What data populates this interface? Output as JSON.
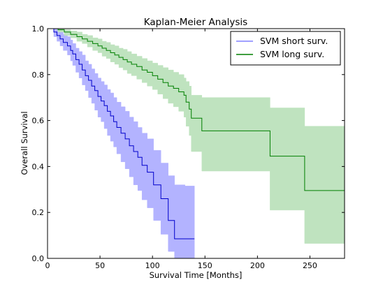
{
  "chart_data": {
    "type": "line",
    "title": "Kaplan-Meier Analysis",
    "xlabel": "Survival Time [Months]",
    "ylabel": "Overall Survival",
    "xlim": [
      0,
      283
    ],
    "ylim": [
      0,
      1.0
    ],
    "xticks": [
      "0",
      "50",
      "100",
      "150",
      "200",
      "250"
    ],
    "xtick_values": [
      0,
      50,
      100,
      150,
      200,
      250
    ],
    "yticks": [
      "0.0",
      "0.2",
      "0.4",
      "0.6",
      "0.8",
      "1.0"
    ],
    "ytick_values": [
      0,
      0.2,
      0.4,
      0.6,
      0.8,
      1.0
    ],
    "grid": false,
    "legend_position": "top-right",
    "series": [
      {
        "name": "SVM short surv.",
        "color": "#0000cc",
        "band_color": "#b3b3ff",
        "survival": [
          [
            0,
            1.0
          ],
          [
            6,
            0.985
          ],
          [
            9,
            0.97
          ],
          [
            12,
            0.955
          ],
          [
            15,
            0.94
          ],
          [
            19,
            0.925
          ],
          [
            22,
            0.905
          ],
          [
            24,
            0.89
          ],
          [
            27,
            0.865
          ],
          [
            30,
            0.845
          ],
          [
            33,
            0.82
          ],
          [
            36,
            0.795
          ],
          [
            39,
            0.775
          ],
          [
            42,
            0.75
          ],
          [
            45,
            0.73
          ],
          [
            48,
            0.705
          ],
          [
            51,
            0.685
          ],
          [
            54,
            0.665
          ],
          [
            57,
            0.64
          ],
          [
            60,
            0.62
          ],
          [
            63,
            0.595
          ],
          [
            66,
            0.57
          ],
          [
            70,
            0.545
          ],
          [
            74,
            0.52
          ],
          [
            78,
            0.49
          ],
          [
            82,
            0.465
          ],
          [
            86,
            0.44
          ],
          [
            90,
            0.405
          ],
          [
            95,
            0.375
          ],
          [
            101,
            0.32
          ],
          [
            108,
            0.26
          ],
          [
            115,
            0.165
          ],
          [
            121,
            0.085
          ],
          [
            131,
            0.085
          ],
          [
            140,
            0.085
          ]
        ],
        "ci_lower": [
          [
            0,
            1.0
          ],
          [
            6,
            0.965
          ],
          [
            9,
            0.945
          ],
          [
            12,
            0.925
          ],
          [
            15,
            0.905
          ],
          [
            19,
            0.885
          ],
          [
            22,
            0.86
          ],
          [
            24,
            0.84
          ],
          [
            27,
            0.81
          ],
          [
            30,
            0.785
          ],
          [
            33,
            0.755
          ],
          [
            36,
            0.73
          ],
          [
            39,
            0.7
          ],
          [
            42,
            0.675
          ],
          [
            45,
            0.645
          ],
          [
            48,
            0.615
          ],
          [
            51,
            0.595
          ],
          [
            54,
            0.565
          ],
          [
            57,
            0.535
          ],
          [
            60,
            0.51
          ],
          [
            63,
            0.485
          ],
          [
            66,
            0.455
          ],
          [
            70,
            0.42
          ],
          [
            74,
            0.39
          ],
          [
            78,
            0.355
          ],
          [
            82,
            0.32
          ],
          [
            86,
            0.295
          ],
          [
            90,
            0.255
          ],
          [
            95,
            0.22
          ],
          [
            101,
            0.165
          ],
          [
            108,
            0.105
          ],
          [
            115,
            0.03
          ],
          [
            121,
            0.0
          ],
          [
            140,
            0.0
          ]
        ],
        "ci_upper": [
          [
            0,
            1.0
          ],
          [
            6,
            1.0
          ],
          [
            9,
            0.995
          ],
          [
            12,
            0.985
          ],
          [
            15,
            0.975
          ],
          [
            19,
            0.965
          ],
          [
            22,
            0.95
          ],
          [
            24,
            0.935
          ],
          [
            27,
            0.915
          ],
          [
            30,
            0.9
          ],
          [
            33,
            0.885
          ],
          [
            36,
            0.86
          ],
          [
            39,
            0.845
          ],
          [
            42,
            0.825
          ],
          [
            45,
            0.805
          ],
          [
            48,
            0.785
          ],
          [
            51,
            0.77
          ],
          [
            54,
            0.755
          ],
          [
            57,
            0.735
          ],
          [
            60,
            0.72
          ],
          [
            63,
            0.7
          ],
          [
            66,
            0.68
          ],
          [
            70,
            0.66
          ],
          [
            74,
            0.64
          ],
          [
            78,
            0.615
          ],
          [
            82,
            0.595
          ],
          [
            86,
            0.57
          ],
          [
            90,
            0.545
          ],
          [
            95,
            0.52
          ],
          [
            101,
            0.47
          ],
          [
            108,
            0.415
          ],
          [
            115,
            0.36
          ],
          [
            121,
            0.32
          ],
          [
            131,
            0.315
          ],
          [
            140,
            0.315
          ]
        ]
      },
      {
        "name": "SVM long surv.",
        "color": "#007f00",
        "band_color": "#bfe3bf",
        "survival": [
          [
            0,
            1.0
          ],
          [
            10,
            0.995
          ],
          [
            16,
            0.985
          ],
          [
            22,
            0.975
          ],
          [
            28,
            0.965
          ],
          [
            33,
            0.955
          ],
          [
            38,
            0.945
          ],
          [
            43,
            0.935
          ],
          [
            48,
            0.925
          ],
          [
            52,
            0.915
          ],
          [
            56,
            0.905
          ],
          [
            60,
            0.895
          ],
          [
            64,
            0.885
          ],
          [
            68,
            0.875
          ],
          [
            72,
            0.865
          ],
          [
            76,
            0.855
          ],
          [
            80,
            0.845
          ],
          [
            85,
            0.835
          ],
          [
            90,
            0.82
          ],
          [
            95,
            0.81
          ],
          [
            100,
            0.795
          ],
          [
            105,
            0.78
          ],
          [
            110,
            0.765
          ],
          [
            115,
            0.75
          ],
          [
            120,
            0.74
          ],
          [
            125,
            0.725
          ],
          [
            130,
            0.71
          ],
          [
            132,
            0.68
          ],
          [
            135,
            0.65
          ],
          [
            137,
            0.61
          ],
          [
            147,
            0.555
          ],
          [
            212,
            0.445
          ],
          [
            245,
            0.295
          ],
          [
            283,
            0.295
          ]
        ],
        "ci_lower": [
          [
            0,
            1.0
          ],
          [
            10,
            0.985
          ],
          [
            16,
            0.97
          ],
          [
            22,
            0.96
          ],
          [
            28,
            0.945
          ],
          [
            33,
            0.935
          ],
          [
            38,
            0.92
          ],
          [
            43,
            0.905
          ],
          [
            48,
            0.895
          ],
          [
            52,
            0.88
          ],
          [
            56,
            0.87
          ],
          [
            60,
            0.855
          ],
          [
            64,
            0.845
          ],
          [
            68,
            0.83
          ],
          [
            72,
            0.82
          ],
          [
            76,
            0.805
          ],
          [
            80,
            0.795
          ],
          [
            85,
            0.78
          ],
          [
            90,
            0.765
          ],
          [
            95,
            0.75
          ],
          [
            100,
            0.735
          ],
          [
            105,
            0.715
          ],
          [
            110,
            0.695
          ],
          [
            115,
            0.675
          ],
          [
            120,
            0.66
          ],
          [
            125,
            0.64
          ],
          [
            130,
            0.615
          ],
          [
            132,
            0.575
          ],
          [
            135,
            0.535
          ],
          [
            137,
            0.465
          ],
          [
            147,
            0.38
          ],
          [
            212,
            0.21
          ],
          [
            245,
            0.065
          ],
          [
            283,
            0.065
          ]
        ],
        "ci_upper": [
          [
            0,
            1.0
          ],
          [
            10,
            1.0
          ],
          [
            16,
            0.995
          ],
          [
            22,
            0.99
          ],
          [
            28,
            0.985
          ],
          [
            33,
            0.975
          ],
          [
            38,
            0.97
          ],
          [
            43,
            0.96
          ],
          [
            48,
            0.955
          ],
          [
            52,
            0.945
          ],
          [
            56,
            0.94
          ],
          [
            60,
            0.93
          ],
          [
            64,
            0.925
          ],
          [
            68,
            0.915
          ],
          [
            72,
            0.91
          ],
          [
            76,
            0.9
          ],
          [
            80,
            0.89
          ],
          [
            85,
            0.88
          ],
          [
            90,
            0.87
          ],
          [
            95,
            0.86
          ],
          [
            100,
            0.85
          ],
          [
            105,
            0.84
          ],
          [
            110,
            0.83
          ],
          [
            115,
            0.82
          ],
          [
            120,
            0.81
          ],
          [
            125,
            0.8
          ],
          [
            130,
            0.785
          ],
          [
            132,
            0.77
          ],
          [
            135,
            0.75
          ],
          [
            137,
            0.71
          ],
          [
            147,
            0.7
          ],
          [
            212,
            0.655
          ],
          [
            245,
            0.575
          ],
          [
            283,
            0.575
          ]
        ]
      }
    ]
  }
}
